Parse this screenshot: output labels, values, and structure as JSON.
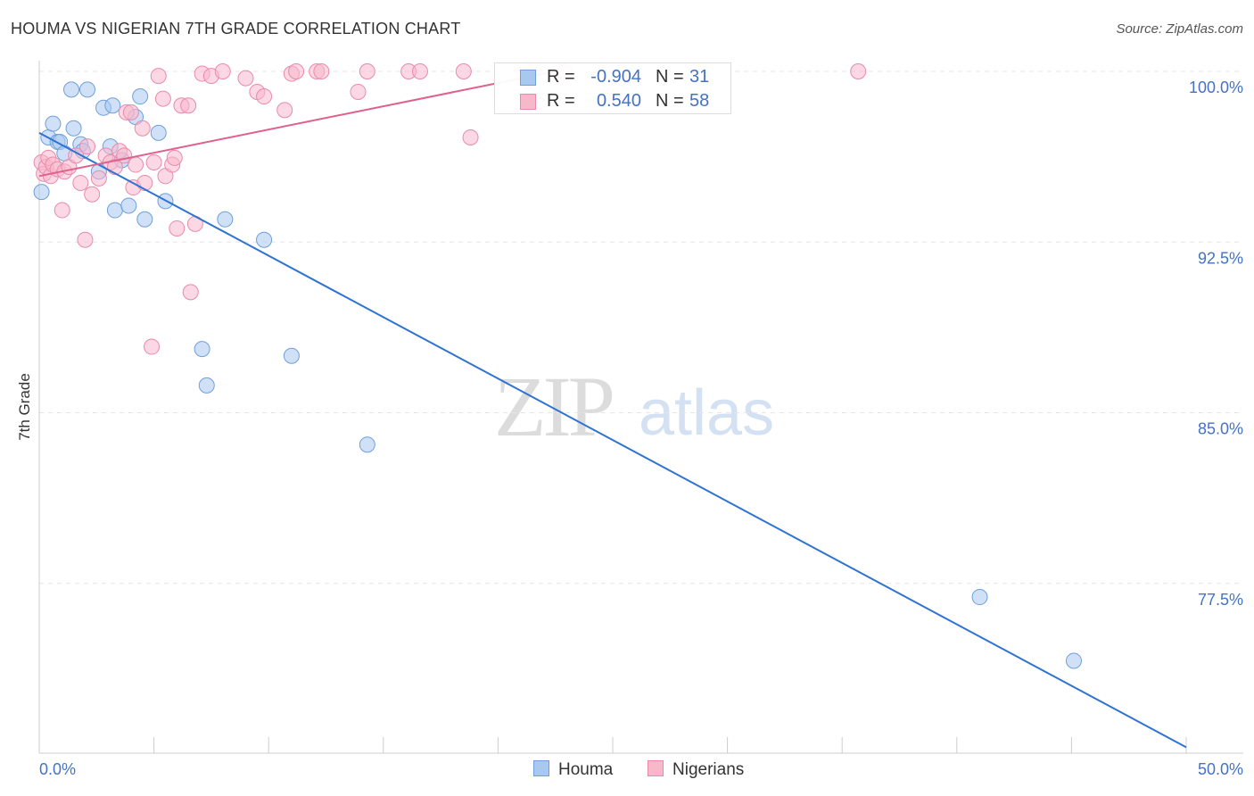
{
  "header": {
    "title": "HOUMA VS NIGERIAN 7TH GRADE CORRELATION CHART",
    "source": "Source: ZipAtlas.com"
  },
  "watermark": {
    "zip": "ZIP",
    "atlas": "atlas"
  },
  "legend": {
    "houma": {
      "r_label": "R =",
      "r_value": "-0.904",
      "n_label": "N =",
      "n_value": "31"
    },
    "nigerians": {
      "r_label": "R =",
      "r_value": "0.540",
      "n_label": "N =",
      "n_value": "58"
    }
  },
  "colors": {
    "houma_fill": "#a9c8f0",
    "houma_stroke": "#6f9fdc",
    "houma_line": "#2f73d2",
    "nigerians_fill": "#f7b8cc",
    "nigerians_stroke": "#ea8aab",
    "nigerians_line": "#e0608c",
    "tick_label": "#4472c4",
    "grid": "#e6e6e6"
  },
  "chart_data": {
    "type": "scatter",
    "title": "HOUMA VS NIGERIAN 7TH GRADE CORRELATION CHART",
    "xlabel": "",
    "ylabel": "7th Grade",
    "xlim": [
      0,
      50
    ],
    "ylim": [
      70.3,
      100.8
    ],
    "x_tick_labels": [
      "0.0%",
      "50.0%"
    ],
    "y_ticks": [
      100.0,
      92.5,
      85.0,
      77.5
    ],
    "y_tick_labels": [
      "100.0%",
      "92.5%",
      "85.0%",
      "77.5%"
    ],
    "grid": true,
    "legend_position": "bottom",
    "series": [
      {
        "name": "Houma",
        "trend": {
          "x": [
            0.0,
            50.0
          ],
          "y": [
            97.3,
            70.3
          ]
        },
        "points": [
          [
            0.1,
            94.7
          ],
          [
            0.4,
            97.1
          ],
          [
            0.6,
            97.7
          ],
          [
            0.8,
            96.9
          ],
          [
            0.9,
            96.9
          ],
          [
            1.1,
            96.4
          ],
          [
            1.4,
            99.2
          ],
          [
            1.5,
            97.5
          ],
          [
            1.8,
            96.8
          ],
          [
            1.9,
            96.5
          ],
          [
            2.1,
            99.2
          ],
          [
            2.6,
            95.6
          ],
          [
            2.8,
            98.4
          ],
          [
            3.1,
            96.7
          ],
          [
            3.2,
            98.5
          ],
          [
            3.3,
            93.9
          ],
          [
            3.6,
            96.1
          ],
          [
            3.9,
            94.1
          ],
          [
            4.2,
            98.0
          ],
          [
            4.4,
            98.9
          ],
          [
            4.6,
            93.5
          ],
          [
            5.2,
            97.3
          ],
          [
            5.5,
            94.3
          ],
          [
            7.1,
            87.8
          ],
          [
            7.3,
            86.2
          ],
          [
            8.1,
            93.5
          ],
          [
            9.8,
            92.6
          ],
          [
            11.0,
            87.5
          ],
          [
            14.3,
            83.6
          ],
          [
            41.0,
            76.9
          ],
          [
            45.1,
            74.1
          ]
        ]
      },
      {
        "name": "Nigerians",
        "trend": {
          "x": [
            0.0,
            22.5
          ],
          "y": [
            95.4,
            100.0
          ]
        },
        "points": [
          [
            0.1,
            96.0
          ],
          [
            0.2,
            95.5
          ],
          [
            0.3,
            95.8
          ],
          [
            0.4,
            96.2
          ],
          [
            0.5,
            95.4
          ],
          [
            0.6,
            95.9
          ],
          [
            0.8,
            95.7
          ],
          [
            1.0,
            93.9
          ],
          [
            1.1,
            95.6
          ],
          [
            1.3,
            95.8
          ],
          [
            1.6,
            96.3
          ],
          [
            1.8,
            95.1
          ],
          [
            2.0,
            92.6
          ],
          [
            2.1,
            96.7
          ],
          [
            2.3,
            94.6
          ],
          [
            2.6,
            95.3
          ],
          [
            2.9,
            96.3
          ],
          [
            3.1,
            96.0
          ],
          [
            3.3,
            95.8
          ],
          [
            3.5,
            96.5
          ],
          [
            3.7,
            96.3
          ],
          [
            3.8,
            98.2
          ],
          [
            4.0,
            98.2
          ],
          [
            4.1,
            94.9
          ],
          [
            4.2,
            95.9
          ],
          [
            4.5,
            97.5
          ],
          [
            4.6,
            95.1
          ],
          [
            4.9,
            87.9
          ],
          [
            5.0,
            96.0
          ],
          [
            5.2,
            99.8
          ],
          [
            5.4,
            98.8
          ],
          [
            5.5,
            95.4
          ],
          [
            5.8,
            95.9
          ],
          [
            5.9,
            96.2
          ],
          [
            6.0,
            93.1
          ],
          [
            6.2,
            98.5
          ],
          [
            6.5,
            98.5
          ],
          [
            6.6,
            90.3
          ],
          [
            6.8,
            93.3
          ],
          [
            7.1,
            99.9
          ],
          [
            7.5,
            99.8
          ],
          [
            8.0,
            100.0
          ],
          [
            9.0,
            99.7
          ],
          [
            9.5,
            99.1
          ],
          [
            9.8,
            98.9
          ],
          [
            10.7,
            98.3
          ],
          [
            11.0,
            99.9
          ],
          [
            11.2,
            100.0
          ],
          [
            12.1,
            100.0
          ],
          [
            12.3,
            100.0
          ],
          [
            13.9,
            99.1
          ],
          [
            14.3,
            100.0
          ],
          [
            16.1,
            100.0
          ],
          [
            16.6,
            100.0
          ],
          [
            18.5,
            100.0
          ],
          [
            18.8,
            97.1
          ],
          [
            22.9,
            100.0
          ],
          [
            35.7,
            100.0
          ]
        ]
      }
    ]
  }
}
